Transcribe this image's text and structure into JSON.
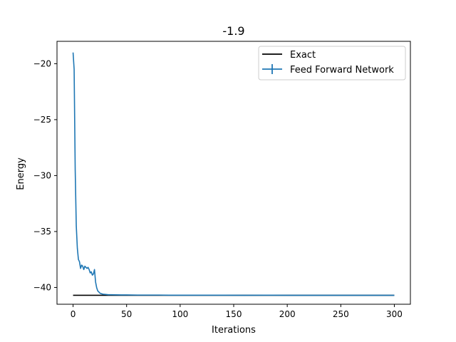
{
  "chart_data": {
    "type": "line",
    "title": "-1.9",
    "xlabel": "Iterations",
    "ylabel": "Energy",
    "xlim": [
      -15,
      315
    ],
    "ylim": [
      -41.5,
      -18
    ],
    "xticks": [
      0,
      50,
      100,
      150,
      200,
      250,
      300
    ],
    "yticks": [
      -20,
      -25,
      -30,
      -35,
      -40
    ],
    "xtick_labels": [
      "0",
      "50",
      "100",
      "150",
      "200",
      "250",
      "300"
    ],
    "ytick_labels": [
      "−20",
      "−25",
      "−30",
      "−35",
      "−40"
    ],
    "grid": false,
    "legend_position": "top-right",
    "series": [
      {
        "name": "Exact",
        "color": "#000000",
        "style": "line",
        "x": [
          0,
          300
        ],
        "y": [
          -40.7,
          -40.7
        ]
      },
      {
        "name": "Feed Forward Network",
        "color": "#1f77b4",
        "style": "errorbar-line",
        "x": [
          0,
          1,
          2,
          3,
          4,
          5,
          6,
          7,
          8,
          9,
          10,
          11,
          12,
          13,
          14,
          15,
          16,
          17,
          18,
          19,
          20,
          21,
          22,
          23,
          24,
          25,
          26,
          28,
          30,
          33,
          36,
          40,
          45,
          50,
          60,
          70,
          80,
          90,
          100,
          120,
          140,
          160,
          180,
          200,
          220,
          240,
          260,
          280,
          300
        ],
        "y": [
          -19.0,
          -20.5,
          -29.5,
          -34.5,
          -36.5,
          -37.5,
          -37.7,
          -38.3,
          -38.0,
          -38.1,
          -38.4,
          -38.1,
          -38.2,
          -38.3,
          -38.2,
          -38.4,
          -38.7,
          -38.6,
          -38.9,
          -38.8,
          -38.4,
          -39.5,
          -40.0,
          -40.3,
          -40.4,
          -40.5,
          -40.55,
          -40.6,
          -40.62,
          -40.65,
          -40.65,
          -40.66,
          -40.67,
          -40.67,
          -40.68,
          -40.68,
          -40.68,
          -40.69,
          -40.69,
          -40.69,
          -40.69,
          -40.7,
          -40.69,
          -40.7,
          -40.7,
          -40.7,
          -40.7,
          -40.7,
          -40.7
        ]
      }
    ]
  }
}
